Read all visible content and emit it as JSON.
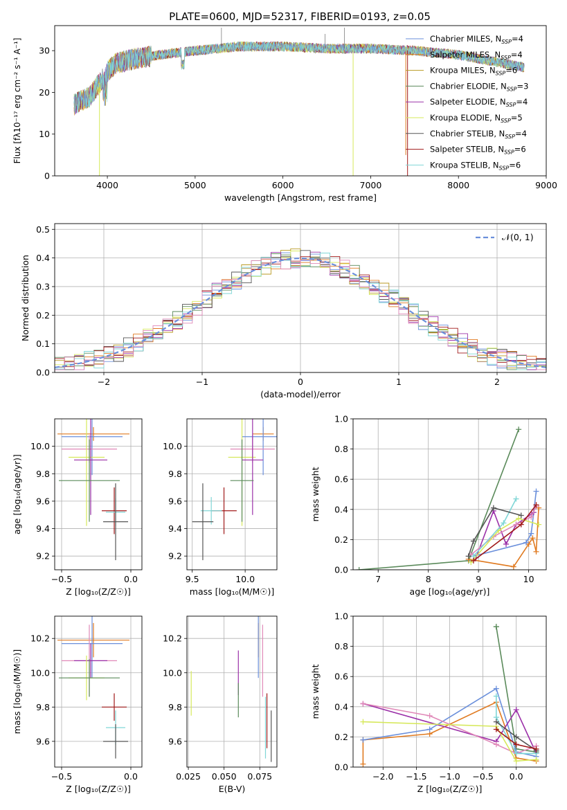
{
  "figure": {
    "title": "PLATE=0600, MJD=52317, FIBERID=0193, z=0.05"
  },
  "colors": {
    "blue": "#6a8fdb",
    "orange": "#e07a20",
    "olive": "#b89a22",
    "green": "#5a8a5a",
    "purple": "#9b30a8",
    "yellow": "#d6e85a",
    "dark": "#555555",
    "red": "#a01818",
    "cyan": "#7fd6d6",
    "pink": "#e088b8",
    "grid": "#b0b0b0"
  },
  "chart_data": [
    {
      "id": "spectrum",
      "type": "line",
      "xlabel": "wavelength [Angstrom, rest frame]",
      "ylabel": "Flux [fλ10⁻¹⁷ erg cm⁻² s⁻¹ A⁻¹]",
      "xlim": [
        3400,
        9000
      ],
      "ylim": [
        0,
        36
      ],
      "xticks": [
        4000,
        5000,
        6000,
        7000,
        8000,
        9000
      ],
      "yticks": [
        0,
        10,
        20,
        30
      ],
      "grid": false,
      "legend_position": "right",
      "legend": [
        {
          "label": "Chabrier MILES, N",
          "sub": "SSP",
          "suffix": "=4",
          "color": "blue"
        },
        {
          "label": "Salpeter MILES, N",
          "sub": "SSP",
          "suffix": "=4",
          "color": "orange"
        },
        {
          "label": "Kroupa MILES, N",
          "sub": "SSP",
          "suffix": "=6",
          "color": "olive"
        },
        {
          "label": "Chabrier ELODIE, N",
          "sub": "SSP",
          "suffix": "=3",
          "color": "green"
        },
        {
          "label": "Salpeter ELODIE, N",
          "sub": "SSP",
          "suffix": "=4",
          "color": "purple"
        },
        {
          "label": "Kroupa ELODIE, N",
          "sub": "SSP",
          "suffix": "=5",
          "color": "yellow"
        },
        {
          "label": "Chabrier STELIB, N",
          "sub": "SSP",
          "suffix": "=4",
          "color": "dark"
        },
        {
          "label": "Salpeter STELIB, N",
          "sub": "SSP",
          "suffix": "=6",
          "color": "red"
        },
        {
          "label": "Kroupa STELIB, N",
          "sub": "SSP",
          "suffix": "=6",
          "color": "cyan"
        }
      ],
      "continuum": {
        "x": [
          3620,
          3700,
          3800,
          3900,
          4000,
          4100,
          4300,
          4600,
          5000,
          5500,
          6000,
          6500,
          7000,
          7500,
          8000,
          8500,
          8750
        ],
        "y": [
          17,
          18,
          19,
          22,
          25,
          27,
          28,
          29,
          30,
          31,
          31,
          30.5,
          30.5,
          30,
          29,
          27,
          26
        ]
      },
      "drops": [
        {
          "x": 3910,
          "y": 0,
          "color": "yellow"
        },
        {
          "x": 6800,
          "y": 0,
          "color": "yellow"
        },
        {
          "x": 7420,
          "y": 0,
          "color": "red"
        },
        {
          "x": 7400,
          "y": 5,
          "color": "orange"
        }
      ]
    },
    {
      "id": "residuals",
      "type": "histogram",
      "xlabel": "(data-model)/error",
      "ylabel": "Normed distribution",
      "xlim": [
        -2.5,
        2.5
      ],
      "ylim": [
        0,
        0.52
      ],
      "xticks": [
        -2,
        -1,
        0,
        1,
        2
      ],
      "yticks": [
        0.0,
        0.1,
        0.2,
        0.3,
        0.4,
        0.5
      ],
      "grid": true,
      "legend_position": "top-right",
      "legend_label": "𝒩(0, 1)",
      "bin_width": 0.1,
      "gaussian": {
        "mu": 0,
        "sigma": 1
      }
    },
    {
      "id": "age-vs-Z",
      "type": "errorbar",
      "xlabel": "Z [log₁₀(Z/Z☉)]",
      "ylabel": "age  [log₁₀(age/yr)]",
      "xlim": [
        -0.55,
        0.08
      ],
      "ylim": [
        9.1,
        10.2
      ],
      "xticks": [
        -0.5,
        0.0
      ],
      "xticklabels": [
        "−0.5",
        "0.0"
      ],
      "yticks": [
        9.2,
        9.4,
        9.6,
        9.8,
        10.0
      ],
      "grid": true,
      "points": [
        {
          "color": "orange",
          "x": -0.27,
          "xerr": 0.26,
          "y": 10.09,
          "yerr": 0.05
        },
        {
          "color": "blue",
          "x": -0.28,
          "xerr": 0.22,
          "y": 10.07,
          "yerr": 0.28
        },
        {
          "color": "pink",
          "x": -0.3,
          "xerr": 0.2,
          "y": 9.98,
          "yerr": 0.1
        },
        {
          "color": "yellow",
          "x": -0.32,
          "xerr": 0.13,
          "y": 9.92,
          "yerr": 0.5
        },
        {
          "color": "purple",
          "x": -0.29,
          "xerr": 0.12,
          "y": 9.9,
          "yerr": 0.4
        },
        {
          "color": "green",
          "x": -0.3,
          "xerr": 0.22,
          "y": 9.75,
          "yerr": 0.3
        },
        {
          "color": "red",
          "x": -0.12,
          "xerr": 0.09,
          "y": 9.53,
          "yerr": 0.17
        },
        {
          "color": "cyan",
          "x": -0.11,
          "xerr": 0.07,
          "y": 9.52,
          "yerr": 0.1
        },
        {
          "color": "dark",
          "x": -0.11,
          "xerr": 0.09,
          "y": 9.45,
          "yerr": 0.28
        }
      ]
    },
    {
      "id": "age-vs-mass",
      "type": "errorbar",
      "xlabel": "mass [log₁₀(M/M☉)]",
      "ylabel": "",
      "xlim": [
        9.45,
        10.3
      ],
      "ylim": [
        9.1,
        10.2
      ],
      "xticks": [
        9.5,
        10.0
      ],
      "xticklabels": [
        "9.5",
        "10.0"
      ],
      "yticks": [
        9.2,
        9.4,
        9.6,
        9.8,
        10.0
      ],
      "grid": true,
      "points": [
        {
          "color": "orange",
          "x": 10.17,
          "xerr": 0.1,
          "y": 10.09,
          "yerr": 0.05
        },
        {
          "color": "blue",
          "x": 10.17,
          "xerr": 0.2,
          "y": 10.07,
          "yerr": 0.28
        },
        {
          "color": "pink",
          "x": 10.07,
          "xerr": 0.21,
          "y": 9.98,
          "yerr": 0.1
        },
        {
          "color": "yellow",
          "x": 9.97,
          "xerr": 0.13,
          "y": 9.92,
          "yerr": 0.5
        },
        {
          "color": "purple",
          "x": 10.07,
          "xerr": 0.1,
          "y": 9.9,
          "yerr": 0.4
        },
        {
          "color": "green",
          "x": 9.97,
          "xerr": 0.11,
          "y": 9.75,
          "yerr": 0.3
        },
        {
          "color": "red",
          "x": 9.8,
          "xerr": 0.12,
          "y": 9.53,
          "yerr": 0.17
        },
        {
          "color": "cyan",
          "x": 9.68,
          "xerr": 0.1,
          "y": 9.53,
          "yerr": 0.1
        },
        {
          "color": "dark",
          "x": 9.6,
          "xerr": 0.1,
          "y": 9.45,
          "yerr": 0.28
        }
      ]
    },
    {
      "id": "weight-vs-age",
      "type": "line",
      "xlabel": "age  [log₁₀(age/yr)]",
      "ylabel": "mass weight",
      "xlim": [
        6.5,
        10.35
      ],
      "ylim": [
        0,
        1.0
      ],
      "xticks": [
        7,
        8,
        9,
        10
      ],
      "yticks": [
        0.0,
        0.2,
        0.4,
        0.6,
        0.8,
        1.0
      ],
      "grid": true,
      "series": [
        {
          "color": "green",
          "x": [
            6.62,
            8.8,
            9.8
          ],
          "y": [
            0.0,
            0.06,
            0.93
          ]
        },
        {
          "color": "orange",
          "x": [
            8.8,
            9.7,
            10.0,
            10.08,
            10.15,
            10.2
          ],
          "y": [
            0.07,
            0.02,
            0.17,
            0.21,
            0.12,
            0.41
          ]
        },
        {
          "color": "blue",
          "x": [
            8.9,
            9.95,
            10.05,
            10.15
          ],
          "y": [
            0.09,
            0.18,
            0.24,
            0.52
          ]
        },
        {
          "color": "purple",
          "x": [
            8.95,
            9.3,
            9.55,
            9.75,
            10.1
          ],
          "y": [
            0.08,
            0.39,
            0.17,
            0.3,
            0.38
          ]
        },
        {
          "color": "pink",
          "x": [
            8.85,
            9.3,
            9.75,
            10.05,
            10.15
          ],
          "y": [
            0.1,
            0.22,
            0.3,
            0.35,
            0.42
          ]
        },
        {
          "color": "yellow",
          "x": [
            8.85,
            9.4,
            9.8,
            10.2
          ],
          "y": [
            0.05,
            0.26,
            0.34,
            0.3
          ]
        },
        {
          "color": "cyan",
          "x": [
            8.9,
            9.5,
            9.75
          ],
          "y": [
            0.09,
            0.31,
            0.47
          ]
        },
        {
          "color": "dark",
          "x": [
            8.8,
            8.9,
            9.3,
            9.85
          ],
          "y": [
            0.09,
            0.19,
            0.41,
            0.36
          ]
        },
        {
          "color": "red",
          "x": [
            8.9,
            9.85,
            10.15
          ],
          "y": [
            0.06,
            0.3,
            0.43
          ]
        }
      ]
    },
    {
      "id": "mass-vs-Z",
      "type": "errorbar",
      "xlabel": "Z [log₁₀(Z/Z☉)]",
      "ylabel": "mass [log₁₀(M/M☉)]",
      "xlim": [
        -0.55,
        0.08
      ],
      "ylim": [
        9.45,
        10.33
      ],
      "xticks": [
        -0.5,
        0.0
      ],
      "xticklabels": [
        "−0.5",
        "0.0"
      ],
      "yticks": [
        9.6,
        9.8,
        10.0,
        10.2
      ],
      "grid": true,
      "points": [
        {
          "color": "orange",
          "x": -0.27,
          "xerr": 0.26,
          "y": 10.19,
          "yerr": 0.1
        },
        {
          "color": "blue",
          "x": -0.28,
          "xerr": 0.22,
          "y": 10.17,
          "yerr": 0.2
        },
        {
          "color": "pink",
          "x": -0.3,
          "xerr": 0.2,
          "y": 10.07,
          "yerr": 0.21
        },
        {
          "color": "purple",
          "x": -0.29,
          "xerr": 0.12,
          "y": 10.07,
          "yerr": 0.1
        },
        {
          "color": "yellow",
          "x": -0.32,
          "xerr": 0.13,
          "y": 9.97,
          "yerr": 0.13
        },
        {
          "color": "green",
          "x": -0.3,
          "xerr": 0.22,
          "y": 9.97,
          "yerr": 0.11
        },
        {
          "color": "red",
          "x": -0.12,
          "xerr": 0.09,
          "y": 9.8,
          "yerr": 0.08
        },
        {
          "color": "cyan",
          "x": -0.11,
          "xerr": 0.07,
          "y": 9.68,
          "yerr": 0.1
        },
        {
          "color": "dark",
          "x": -0.11,
          "xerr": 0.09,
          "y": 9.6,
          "yerr": 0.1
        }
      ]
    },
    {
      "id": "mass-vs-ebv",
      "type": "errorbar",
      "xlabel": "E(B-V)",
      "ylabel": "",
      "xlim": [
        0.024,
        0.087
      ],
      "ylim": [
        9.45,
        10.33
      ],
      "xticks": [
        0.025,
        0.05,
        0.075
      ],
      "xticklabels": [
        "0.025",
        "0.050",
        "0.075"
      ],
      "yticks": [
        9.6,
        9.8,
        10.0,
        10.2
      ],
      "grid": true,
      "points": [
        {
          "color": "orange",
          "x": 0.074,
          "xerr": 0,
          "y": 10.19,
          "yerr": 0.1
        },
        {
          "color": "blue",
          "x": 0.074,
          "xerr": 0,
          "y": 10.17,
          "yerr": 0.2
        },
        {
          "color": "pink",
          "x": 0.077,
          "xerr": 0,
          "y": 10.07,
          "yerr": 0.21
        },
        {
          "color": "purple",
          "x": 0.06,
          "xerr": 0,
          "y": 10.0,
          "yerr": 0.13
        },
        {
          "color": "yellow",
          "x": 0.027,
          "xerr": 0,
          "y": 9.88,
          "yerr": 0.13
        },
        {
          "color": "green",
          "x": 0.06,
          "xerr": 0,
          "y": 9.84,
          "yerr": 0.1
        },
        {
          "color": "red",
          "x": 0.08,
          "xerr": 0,
          "y": 9.72,
          "yerr": 0.16
        },
        {
          "color": "cyan",
          "x": 0.079,
          "xerr": 0,
          "y": 9.68,
          "yerr": 0.18
        },
        {
          "color": "dark",
          "x": 0.083,
          "xerr": 0,
          "y": 9.63,
          "yerr": 0.15
        }
      ]
    },
    {
      "id": "weight-vs-Z",
      "type": "line",
      "xlabel": "Z [log₁₀(Z/Z☉)]",
      "ylabel": "mass weight",
      "xlim": [
        -2.45,
        0.45
      ],
      "ylim": [
        0,
        1.0
      ],
      "xticks": [
        -2.0,
        -1.5,
        -1.0,
        -0.5,
        0.0
      ],
      "xticklabels": [
        "−2.0",
        "−1.5",
        "−1.0",
        "−0.5",
        "0.0"
      ],
      "yticks": [
        0.0,
        0.2,
        0.4,
        0.6,
        0.8,
        1.0
      ],
      "grid": true,
      "series": [
        {
          "color": "green",
          "x": [
            -0.3,
            -0.3,
            0.0,
            0.3
          ],
          "y": [
            0.93,
            0.93,
            0.12,
            0.1
          ]
        },
        {
          "color": "orange",
          "x": [
            -2.3,
            -2.3,
            -1.3,
            -0.3,
            0.0,
            0.3
          ],
          "y": [
            0.02,
            0.18,
            0.22,
            0.43,
            0.06,
            0.04
          ]
        },
        {
          "color": "blue",
          "x": [
            -2.3,
            -1.3,
            -0.3,
            0.0,
            0.3
          ],
          "y": [
            0.18,
            0.25,
            0.52,
            0.1,
            0.07
          ]
        },
        {
          "color": "purple",
          "x": [
            -2.3,
            -0.3,
            0.0,
            0.3
          ],
          "y": [
            0.42,
            0.17,
            0.38,
            0.09
          ]
        },
        {
          "color": "pink",
          "x": [
            -2.3,
            -1.3,
            -0.3,
            0.0,
            0.3
          ],
          "y": [
            0.42,
            0.34,
            0.15,
            0.09,
            0.14
          ]
        },
        {
          "color": "yellow",
          "x": [
            -2.3,
            -0.3,
            0.0,
            0.3
          ],
          "y": [
            0.3,
            0.27,
            0.04,
            0.05
          ]
        },
        {
          "color": "cyan",
          "x": [
            -0.3,
            -0.3,
            0.0,
            0.3
          ],
          "y": [
            0.47,
            0.33,
            0.09,
            0.09
          ]
        },
        {
          "color": "dark",
          "x": [
            -0.3,
            0.0,
            0.3
          ],
          "y": [
            0.3,
            0.2,
            0.11
          ]
        },
        {
          "color": "red",
          "x": [
            -0.3,
            0.0,
            0.3
          ],
          "y": [
            0.25,
            0.15,
            0.12
          ]
        }
      ]
    }
  ]
}
